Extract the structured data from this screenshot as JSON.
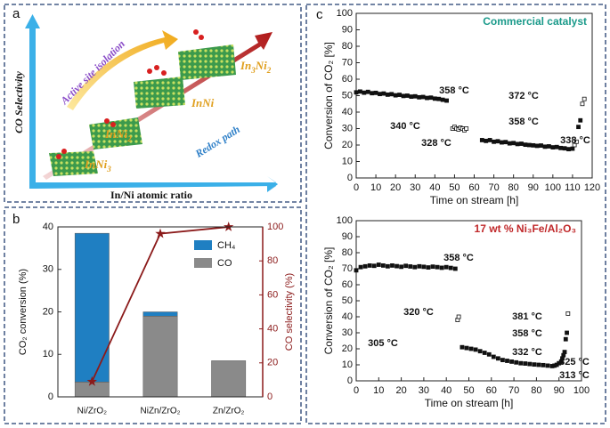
{
  "panel_labels": [
    "a",
    "b",
    "c"
  ],
  "diagram": {
    "y_axis": "CO Selectivity",
    "x_axis": "In/Ni atomic ratio",
    "top_arrow": "Active site isolation",
    "bottom_arrow": "Redox path",
    "phases": [
      [
        "InNi",
        "3"
      ],
      [
        "InNi",
        "2"
      ],
      [
        "InNi"
      ],
      [
        "In",
        "3",
        "Ni",
        "2"
      ]
    ]
  },
  "chart_data": [
    {
      "type": "bar",
      "categories": [
        "Ni/ZrO₂",
        "NiZn/ZrO₂",
        "Zn/ZrO₂"
      ],
      "series": [
        {
          "name": "CO",
          "color": "#8a8a8a",
          "values": [
            3.5,
            19,
            8.5
          ]
        },
        {
          "name": "CH₄",
          "color": "#1f7fc2",
          "values": [
            35,
            1,
            0
          ]
        },
        {
          "color": "#8b1a1a",
          "axis": "y2",
          "values": [
            9,
            96,
            100
          ]
        }
      ],
      "ylabel": "CO₂ conversion (%)",
      "y2label": "CO selectivity (%)",
      "ylim": [
        0,
        40
      ],
      "yticks": [
        0,
        10,
        20,
        30,
        40
      ],
      "y2lim": [
        0,
        100
      ],
      "y2ticks": [
        0,
        20,
        40,
        60,
        80,
        100
      ]
    },
    {
      "type": "scatter",
      "title": "Commercial catalyst",
      "title_color": "#1a9a8a",
      "xlabel": "Time on stream [h]",
      "ylabel": "Conversion of CO₂ [%]",
      "xlim": [
        0,
        120
      ],
      "xticks": [
        0,
        10,
        20,
        30,
        40,
        50,
        60,
        70,
        80,
        90,
        100,
        110,
        120
      ],
      "ylim": [
        0,
        100
      ],
      "yticks": [
        0,
        10,
        20,
        30,
        40,
        50,
        60,
        70,
        80,
        90,
        100
      ],
      "series": [
        {
          "name": "358 °C",
          "color": "#111111",
          "filled": true,
          "x": [
            0,
            2,
            4,
            6,
            8,
            10,
            12,
            14,
            16,
            18,
            20,
            22,
            24,
            26,
            28,
            30,
            32,
            34,
            36,
            38,
            40,
            42,
            44,
            46
          ],
          "values": [
            52,
            52.5,
            51.8,
            52.3,
            51.5,
            51.7,
            51,
            51.3,
            50.6,
            50.9,
            50.2,
            50.5,
            49.8,
            50,
            49.4,
            49.6,
            49,
            49.2,
            48.6,
            48.8,
            48.2,
            48,
            47.5,
            47
          ]
        },
        {
          "name": "340 °C",
          "color": "#111111",
          "filled": false,
          "x": [
            49,
            50,
            51,
            52,
            53,
            54,
            55,
            56
          ],
          "values": [
            30,
            31,
            30,
            29.5,
            30.5,
            30,
            29,
            30
          ]
        },
        {
          "name": "328 °C",
          "color": "#111111",
          "filled": true,
          "x": [
            64,
            66,
            68,
            70,
            72,
            74,
            76,
            78,
            80,
            82,
            84,
            86,
            88,
            90,
            92,
            94,
            96,
            98,
            100,
            102,
            104,
            106,
            108,
            110
          ],
          "values": [
            23,
            22.5,
            23,
            22,
            22.3,
            21.6,
            21.8,
            21,
            21.2,
            20.6,
            20.8,
            20.2,
            20,
            19.8,
            19.5,
            19.7,
            19,
            19.2,
            18.6,
            18.8,
            18.2,
            18,
            17.5,
            17.8
          ]
        },
        {
          "name": "338 °C",
          "color": "#111111",
          "filled": false,
          "x": [
            111,
            112
          ],
          "values": [
            20,
            22
          ]
        },
        {
          "name": "358 °C",
          "color": "#111111",
          "filled": true,
          "x": [
            113,
            114
          ],
          "values": [
            31,
            35
          ]
        },
        {
          "name": "372 °C",
          "color": "#111111",
          "filled": false,
          "x": [
            115,
            116
          ],
          "values": [
            45,
            48
          ]
        }
      ]
    },
    {
      "type": "scatter",
      "title": "17 wt % Ni₃Fe/Al₂O₃",
      "title_color": "#c0282a",
      "xlabel": "Time on stream [h]",
      "ylabel": "Conversion of CO₂ [%]",
      "xlim": [
        0,
        100
      ],
      "xticks": [
        0,
        10,
        20,
        30,
        40,
        50,
        60,
        70,
        80,
        90,
        100
      ],
      "ylim": [
        0,
        100
      ],
      "yticks": [
        0,
        10,
        20,
        30,
        40,
        50,
        60,
        70,
        80,
        90,
        100
      ],
      "series": [
        {
          "name": "358 °C",
          "color": "#111111",
          "filled": true,
          "x": [
            0,
            2,
            4,
            6,
            8,
            10,
            12,
            14,
            16,
            18,
            20,
            22,
            24,
            26,
            28,
            30,
            32,
            34,
            36,
            38,
            40,
            42,
            44
          ],
          "values": [
            69,
            71,
            71.5,
            72,
            71.8,
            72.5,
            72,
            71.5,
            72,
            71.6,
            71.2,
            71.8,
            71.4,
            71,
            71.5,
            71.2,
            70.8,
            71.3,
            71,
            70.6,
            71,
            70.5,
            70
          ]
        },
        {
          "name": "320 °C",
          "color": "#111111",
          "filled": false,
          "x": [
            45,
            45.5
          ],
          "values": [
            38,
            40
          ]
        },
        {
          "name": "305 °C",
          "color": "#111111",
          "filled": true,
          "x": [
            47,
            49,
            51,
            53,
            55,
            57,
            59,
            61,
            63,
            65,
            67,
            69,
            71,
            73,
            75,
            77,
            79,
            81,
            83,
            85,
            87
          ],
          "values": [
            21,
            20.5,
            20,
            19.5,
            18.5,
            17.5,
            16.5,
            15,
            14,
            13,
            12.5,
            12,
            11.5,
            11,
            10.8,
            10.5,
            10.2,
            10,
            9.8,
            9.5,
            9.2
          ]
        },
        {
          "name": "332 °C",
          "color": "#111111",
          "filled": true,
          "x": [
            88,
            89,
            90
          ],
          "values": [
            9.5,
            10,
            11
          ]
        },
        {
          "name": "325 °C",
          "color": "#111111",
          "filled": true,
          "x": [
            91,
            91.5
          ],
          "values": [
            12,
            14
          ]
        },
        {
          "name": "313 °C",
          "color": "#111111",
          "filled": true,
          "x": [
            92,
            92.5
          ],
          "values": [
            16,
            18
          ]
        },
        {
          "name": "358 °C",
          "color": "#111111",
          "filled": true,
          "x": [
            93,
            93.5
          ],
          "values": [
            26,
            30
          ]
        },
        {
          "name": "381 °C",
          "color": "#111111",
          "filled": false,
          "x": [
            94
          ],
          "values": [
            42
          ]
        }
      ]
    }
  ]
}
